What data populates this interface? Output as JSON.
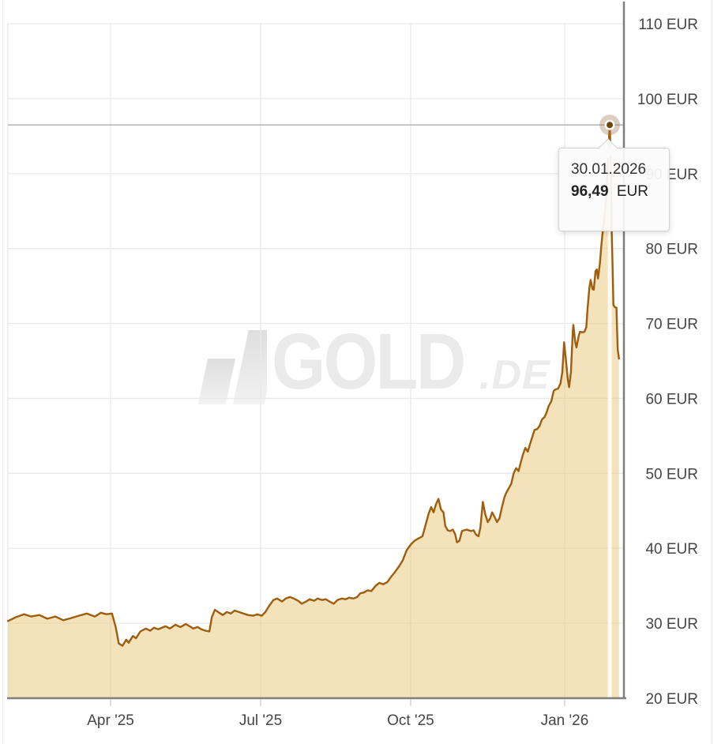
{
  "tooltip": {
    "date": "30.01.2026",
    "price": "96,49",
    "currency": "EUR"
  },
  "watermark": {
    "brand": "GOLD",
    "suffix": ".DE"
  },
  "chart_data": {
    "type": "area",
    "title": "",
    "xlabel": "",
    "ylabel": "",
    "ylim": [
      20,
      110
    ],
    "grid": "on",
    "legend": "none",
    "y_ticks": [
      {
        "v": 20,
        "label": "20 EUR"
      },
      {
        "v": 30,
        "label": "30 EUR"
      },
      {
        "v": 40,
        "label": "40 EUR"
      },
      {
        "v": 50,
        "label": "50 EUR"
      },
      {
        "v": 60,
        "label": "60 EUR"
      },
      {
        "v": 70,
        "label": "70 EUR"
      },
      {
        "v": 80,
        "label": "80 EUR"
      },
      {
        "v": 90,
        "label": "90 EUR"
      },
      {
        "v": 100,
        "label": "100 EUR"
      },
      {
        "v": 110,
        "label": "110 EUR"
      }
    ],
    "x_ticks": [
      {
        "f": 0.1667,
        "label": "Apr '25"
      },
      {
        "f": 0.4103,
        "label": "Jul '25"
      },
      {
        "f": 0.6538,
        "label": "Oct '25"
      },
      {
        "f": 0.9038,
        "label": "Jan '26"
      }
    ],
    "marker": {
      "f": 0.977,
      "value": 96.49,
      "date": "30.01.2026"
    },
    "colors": {
      "line": "#9e5e0e",
      "fill": "rgba(231,197,117,0.5)",
      "grid": "#e9e9e9",
      "axis": "#7f7f7f",
      "tick": "#cccccc",
      "crosshair": "#b9b9b9",
      "crosshair_v": "rgba(255,255,255,0.85)",
      "marker_dot": "#6e4507",
      "marker_ring": "#ffffff",
      "marker_halo": "rgba(158,116,76,0.35)",
      "label": "#454545"
    },
    "points": [
      [
        0,
        30.3
      ],
      [
        0.013,
        30.8
      ],
      [
        0.026,
        31.2
      ],
      [
        0.038,
        30.9
      ],
      [
        0.051,
        31.1
      ],
      [
        0.064,
        30.6
      ],
      [
        0.077,
        30.9
      ],
      [
        0.09,
        30.4
      ],
      [
        0.103,
        30.7
      ],
      [
        0.115,
        31.0
      ],
      [
        0.128,
        31.3
      ],
      [
        0.141,
        30.9
      ],
      [
        0.151,
        31.4
      ],
      [
        0.16,
        31.2
      ],
      [
        0.169,
        31.3
      ],
      [
        0.175,
        29.5
      ],
      [
        0.18,
        27.3
      ],
      [
        0.186,
        27.0
      ],
      [
        0.192,
        27.8
      ],
      [
        0.196,
        27.4
      ],
      [
        0.203,
        28.3
      ],
      [
        0.208,
        28.0
      ],
      [
        0.215,
        28.9
      ],
      [
        0.224,
        29.3
      ],
      [
        0.231,
        29.0
      ],
      [
        0.237,
        29.4
      ],
      [
        0.244,
        29.2
      ],
      [
        0.256,
        29.6
      ],
      [
        0.263,
        29.3
      ],
      [
        0.272,
        29.8
      ],
      [
        0.28,
        29.5
      ],
      [
        0.289,
        29.9
      ],
      [
        0.295,
        29.6
      ],
      [
        0.301,
        29.3
      ],
      [
        0.308,
        29.5
      ],
      [
        0.314,
        29.2
      ],
      [
        0.321,
        29.0
      ],
      [
        0.327,
        28.9
      ],
      [
        0.331,
        30.8
      ],
      [
        0.336,
        31.8
      ],
      [
        0.343,
        31.4
      ],
      [
        0.349,
        31.1
      ],
      [
        0.355,
        31.5
      ],
      [
        0.362,
        31.3
      ],
      [
        0.368,
        31.7
      ],
      [
        0.375,
        31.5
      ],
      [
        0.382,
        31.3
      ],
      [
        0.39,
        31.1
      ],
      [
        0.398,
        31.0
      ],
      [
        0.405,
        31.2
      ],
      [
        0.412,
        31.0
      ],
      [
        0.418,
        31.5
      ],
      [
        0.424,
        32.3
      ],
      [
        0.431,
        33.1
      ],
      [
        0.437,
        33.3
      ],
      [
        0.445,
        32.9
      ],
      [
        0.451,
        33.3
      ],
      [
        0.458,
        33.5
      ],
      [
        0.464,
        33.3
      ],
      [
        0.471,
        33.0
      ],
      [
        0.477,
        32.6
      ],
      [
        0.484,
        32.9
      ],
      [
        0.49,
        33.2
      ],
      [
        0.497,
        33.0
      ],
      [
        0.503,
        33.3
      ],
      [
        0.51,
        33.1
      ],
      [
        0.516,
        33.2
      ],
      [
        0.522,
        32.9
      ],
      [
        0.529,
        32.6
      ],
      [
        0.535,
        33.1
      ],
      [
        0.542,
        33.3
      ],
      [
        0.548,
        33.2
      ],
      [
        0.554,
        33.4
      ],
      [
        0.561,
        33.3
      ],
      [
        0.567,
        33.5
      ],
      [
        0.572,
        34.0
      ],
      [
        0.578,
        34.1
      ],
      [
        0.584,
        34.4
      ],
      [
        0.59,
        34.3
      ],
      [
        0.597,
        35.0
      ],
      [
        0.603,
        35.4
      ],
      [
        0.609,
        35.2
      ],
      [
        0.616,
        35.5
      ],
      [
        0.622,
        36.2
      ],
      [
        0.628,
        36.8
      ],
      [
        0.635,
        37.6
      ],
      [
        0.641,
        38.4
      ],
      [
        0.647,
        39.7
      ],
      [
        0.654,
        40.5
      ],
      [
        0.66,
        41.0
      ],
      [
        0.666,
        41.3
      ],
      [
        0.673,
        41.6
      ],
      [
        0.679,
        43.4
      ],
      [
        0.683,
        44.6
      ],
      [
        0.687,
        45.5
      ],
      [
        0.691,
        44.8
      ],
      [
        0.695,
        45.9
      ],
      [
        0.699,
        46.6
      ],
      [
        0.703,
        45.2
      ],
      [
        0.707,
        44.8
      ],
      [
        0.71,
        43.0
      ],
      [
        0.714,
        42.4
      ],
      [
        0.718,
        42.3
      ],
      [
        0.722,
        42.5
      ],
      [
        0.726,
        41.9
      ],
      [
        0.729,
        40.8
      ],
      [
        0.733,
        41.0
      ],
      [
        0.737,
        42.3
      ],
      [
        0.741,
        42.4
      ],
      [
        0.745,
        42.5
      ],
      [
        0.748,
        42.4
      ],
      [
        0.752,
        42.3
      ],
      [
        0.756,
        42.4
      ],
      [
        0.76,
        41.8
      ],
      [
        0.764,
        41.6
      ],
      [
        0.767,
        42.8
      ],
      [
        0.771,
        46.2
      ],
      [
        0.775,
        44.5
      ],
      [
        0.779,
        43.5
      ],
      [
        0.783,
        44.0
      ],
      [
        0.786,
        44.8
      ],
      [
        0.79,
        44.2
      ],
      [
        0.794,
        43.5
      ],
      [
        0.798,
        44.0
      ],
      [
        0.802,
        45.5
      ],
      [
        0.806,
        46.8
      ],
      [
        0.809,
        47.4
      ],
      [
        0.813,
        48.0
      ],
      [
        0.817,
        48.6
      ],
      [
        0.821,
        50.0
      ],
      [
        0.825,
        50.7
      ],
      [
        0.829,
        50.3
      ],
      [
        0.832,
        51.3
      ],
      [
        0.836,
        52.5
      ],
      [
        0.84,
        53.4
      ],
      [
        0.844,
        52.9
      ],
      [
        0.848,
        54.0
      ],
      [
        0.851,
        54.8
      ],
      [
        0.855,
        55.8
      ],
      [
        0.859,
        55.9
      ],
      [
        0.863,
        56.3
      ],
      [
        0.867,
        57.2
      ],
      [
        0.871,
        57.5
      ],
      [
        0.874,
        58.0
      ],
      [
        0.878,
        59.0
      ],
      [
        0.882,
        59.6
      ],
      [
        0.886,
        61.0
      ],
      [
        0.889,
        61.2
      ],
      [
        0.893,
        61.3
      ],
      [
        0.897,
        62.0
      ],
      [
        0.9,
        63.5
      ],
      [
        0.903,
        67.5
      ],
      [
        0.906,
        65.0
      ],
      [
        0.909,
        62.5
      ],
      [
        0.911,
        61.5
      ],
      [
        0.914,
        63.5
      ],
      [
        0.917,
        69.0
      ],
      [
        0.918,
        69.8
      ],
      [
        0.921,
        67.5
      ],
      [
        0.923,
        66.8
      ],
      [
        0.927,
        68.5
      ],
      [
        0.929,
        68.9
      ],
      [
        0.933,
        68.8
      ],
      [
        0.936,
        68.9
      ],
      [
        0.939,
        69.5
      ],
      [
        0.941,
        72.0
      ],
      [
        0.944,
        74.8
      ],
      [
        0.946,
        75.8
      ],
      [
        0.949,
        74.6
      ],
      [
        0.951,
        74.5
      ],
      [
        0.954,
        77.0
      ],
      [
        0.956,
        77.2
      ],
      [
        0.958,
        76.0
      ],
      [
        0.961,
        78.0
      ],
      [
        0.963,
        80.0
      ],
      [
        0.965,
        81.8
      ],
      [
        0.968,
        84.0
      ],
      [
        0.971,
        86.5
      ],
      [
        0.973,
        89.5
      ],
      [
        0.975,
        93.5
      ],
      [
        0.977,
        96.49
      ],
      [
        0.979,
        91.0
      ],
      [
        0.98,
        83.0
      ],
      [
        0.982,
        76.0
      ],
      [
        0.983,
        72.5
      ],
      [
        0.985,
        72.2
      ],
      [
        0.988,
        72.1
      ],
      [
        0.989,
        69.0
      ],
      [
        0.99,
        66.5
      ],
      [
        0.992,
        65.3
      ]
    ]
  }
}
